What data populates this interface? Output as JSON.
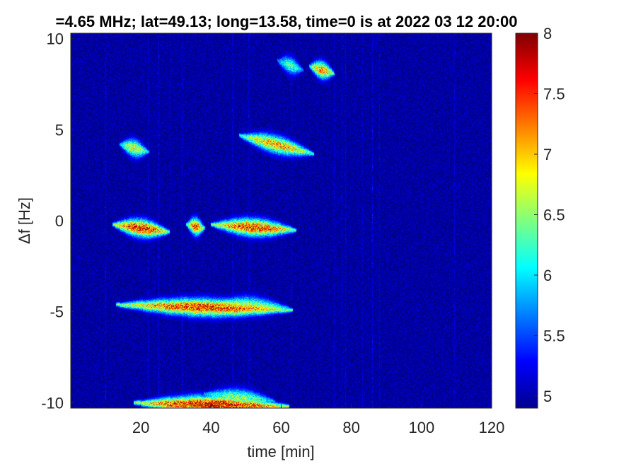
{
  "chart_data": {
    "type": "heatmap",
    "title": "=4.65 MHz;  lat=49.13; long=13.58, time=0 is at 2022 03 12 20:00",
    "xlabel": "time [min]",
    "ylabel": "Δf [Hz]",
    "xlim": [
      0,
      120
    ],
    "ylim": [
      -10.3,
      10.3
    ],
    "x_ticks": [
      "20",
      "40",
      "60",
      "80",
      "100",
      "120"
    ],
    "x_tick_values": [
      20,
      40,
      60,
      80,
      100,
      120
    ],
    "y_ticks": [
      "10",
      "5",
      "0",
      "-5",
      "-10"
    ],
    "y_tick_values": [
      10,
      5,
      0,
      -5,
      -10
    ],
    "colorbar": {
      "colormap": "jet",
      "range": [
        4.9,
        8
      ],
      "ticks": [
        "8",
        "7.5",
        "7",
        "6.5",
        "6",
        "5.5",
        "5"
      ],
      "tick_values": [
        8,
        7.5,
        7,
        6.5,
        6,
        5.5,
        5
      ]
    },
    "background_level": 5.0,
    "grid": false,
    "traces": [
      {
        "x": [
          59,
          66
        ],
        "y": [
          8.8,
          8.3
        ],
        "peak": 6.4
      },
      {
        "x": [
          68,
          75
        ],
        "y": [
          8.5,
          8.1
        ],
        "peak": 7.3
      },
      {
        "x": [
          14,
          22
        ],
        "y": [
          4.2,
          3.8
        ],
        "peak": 6.9
      },
      {
        "x": [
          48,
          69
        ],
        "y": [
          4.7,
          3.7
        ],
        "peak": 7.3
      },
      {
        "x": [
          12,
          28
        ],
        "y": [
          -0.2,
          -0.6
        ],
        "peak": 7.8
      },
      {
        "x": [
          33,
          38
        ],
        "y": [
          -0.2,
          -0.4
        ],
        "peak": 7.5
      },
      {
        "x": [
          40,
          64
        ],
        "y": [
          -0.2,
          -0.5
        ],
        "peak": 7.7
      },
      {
        "x": [
          13,
          63
        ],
        "y": [
          -4.6,
          -4.9
        ],
        "peak": 7.7
      },
      {
        "x": [
          40,
          62
        ],
        "y": [
          -4.5,
          -4.8
        ],
        "peak": 6.8
      },
      {
        "x": [
          18,
          62
        ],
        "y": [
          -10.0,
          -10.2
        ],
        "peak": 8.0
      },
      {
        "x": [
          38,
          58
        ],
        "y": [
          -9.5,
          -9.9
        ],
        "peak": 6.6
      }
    ]
  }
}
